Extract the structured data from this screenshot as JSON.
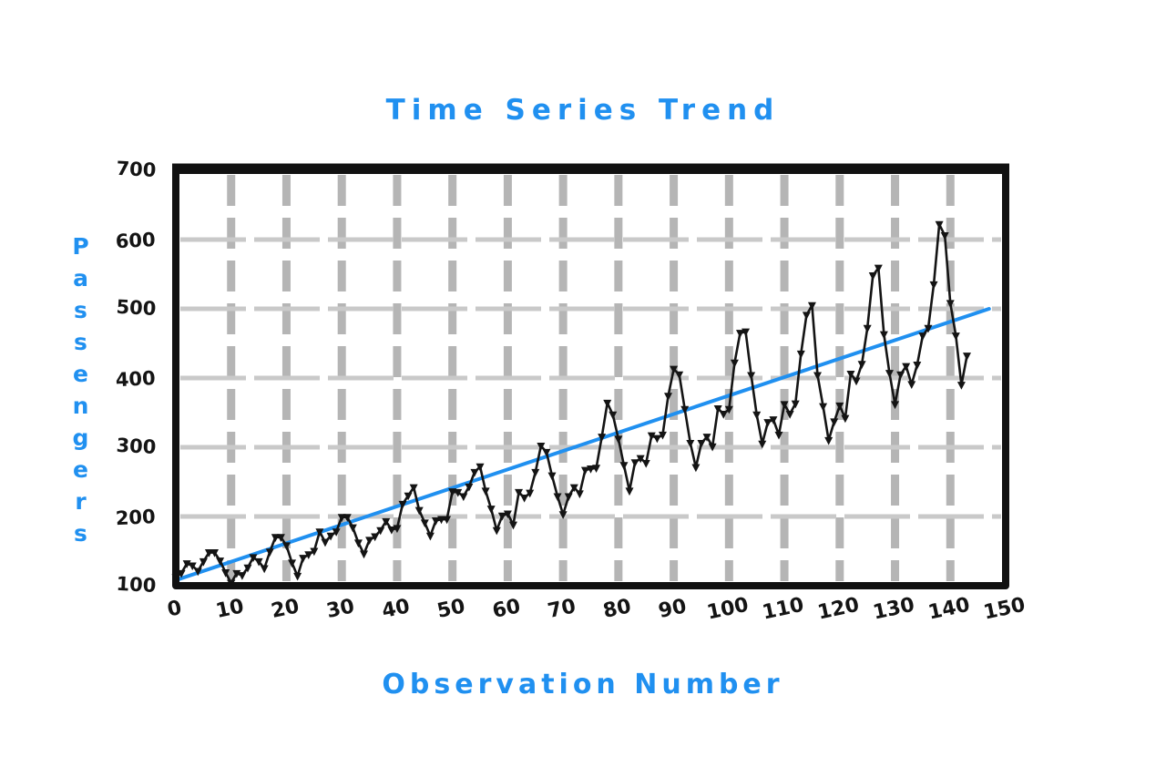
{
  "page": {
    "background": "#ffffff"
  },
  "chart_data": {
    "type": "line",
    "title": "Time Series Trend",
    "xlabel": "Observation Number",
    "ylabel": "Passengers",
    "xlim": [
      0,
      150
    ],
    "ylim": [
      100,
      700
    ],
    "xticks": [
      0,
      10,
      20,
      30,
      40,
      50,
      60,
      70,
      80,
      90,
      100,
      110,
      120,
      130,
      140,
      150
    ],
    "yticks": [
      100,
      200,
      300,
      400,
      500,
      600,
      700
    ],
    "grid": true,
    "legend": false,
    "style": {
      "accent_color": "#2090f0",
      "series_color": "#141414",
      "vgrid_color": "#b5b5b5",
      "hgrid_color": "#c9c9c9",
      "frame_color": "#111111"
    },
    "series": [
      {
        "name": "passengers",
        "color": "#141414",
        "width": 2.6,
        "markers": true,
        "x_start": 0,
        "x_step": 1,
        "values": [
          112,
          118,
          132,
          129,
          121,
          135,
          148,
          148,
          136,
          119,
          104,
          118,
          115,
          126,
          141,
          135,
          125,
          149,
          170,
          170,
          158,
          133,
          114,
          140,
          145,
          150,
          178,
          163,
          172,
          178,
          199,
          199,
          184,
          162,
          146,
          166,
          171,
          180,
          193,
          181,
          183,
          218,
          230,
          242,
          209,
          191,
          172,
          194,
          196,
          196,
          236,
          235,
          229,
          243,
          264,
          272,
          237,
          211,
          180,
          201,
          204,
          188,
          235,
          227,
          234,
          264,
          302,
          293,
          259,
          229,
          203,
          229,
          242,
          233,
          267,
          269,
          270,
          315,
          364,
          347,
          312,
          274,
          237,
          278,
          284,
          277,
          317,
          313,
          318,
          374,
          413,
          405,
          355,
          306,
          271,
          306,
          315,
          301,
          356,
          348,
          355,
          422,
          465,
          467,
          404,
          347,
          305,
          336,
          340,
          318,
          362,
          348,
          363,
          435,
          491,
          505,
          404,
          359,
          310,
          337,
          360,
          342,
          406,
          396,
          420,
          472,
          548,
          559,
          463,
          407,
          362,
          405,
          417,
          391,
          419,
          461,
          472,
          535,
          622,
          606,
          508,
          461,
          390,
          432
        ]
      },
      {
        "name": "trend",
        "color": "#2090f0",
        "width": 4,
        "markers": false,
        "x": [
          0,
          147
        ],
        "values": [
          108,
          500
        ]
      }
    ]
  }
}
